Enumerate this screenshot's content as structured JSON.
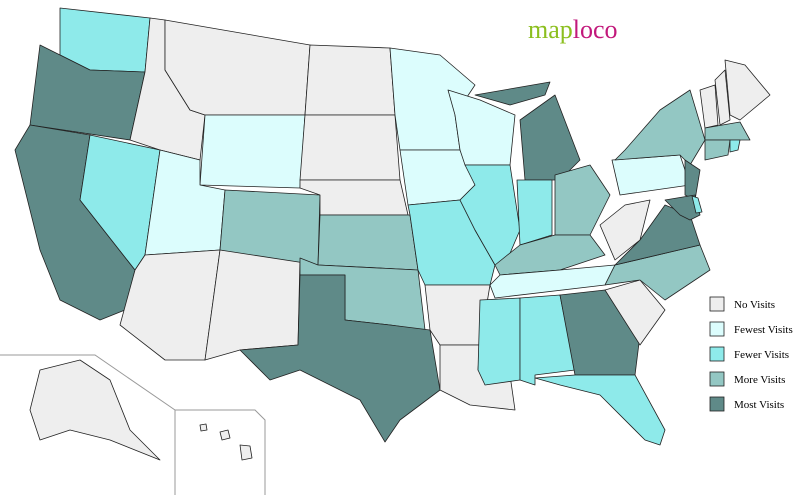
{
  "logo": {
    "first": "map",
    "second": "loco",
    "first_color": "#8cbf1f",
    "second_color": "#c2187b"
  },
  "legend": {
    "items": [
      {
        "label": "No Visits",
        "color": "#eeeeee"
      },
      {
        "label": "Fewest Visits",
        "color": "#dcfdfd"
      },
      {
        "label": "Fewer Visits",
        "color": "#8eeaea"
      },
      {
        "label": "More Visits",
        "color": "#93c7c3"
      },
      {
        "label": "Most Visits",
        "color": "#5f8a88"
      }
    ]
  }
}
